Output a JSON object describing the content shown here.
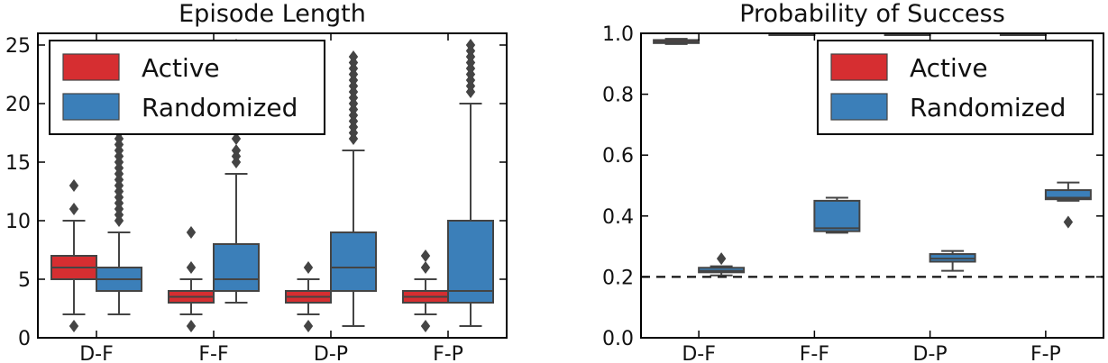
{
  "colors": {
    "active": "#d62e31",
    "randomized": "#3b7fb9",
    "outline": "#444444",
    "frame": "#000000"
  },
  "chart_data": [
    {
      "type": "box",
      "title": "Episode Length",
      "xlabel": "",
      "ylabel": "",
      "ylim": [
        0,
        26
      ],
      "yticks": [
        0,
        5,
        10,
        15,
        20,
        25
      ],
      "ytick_labels": [
        "0",
        "5",
        "10",
        "15",
        "20",
        "25"
      ],
      "categories": [
        "D-F",
        "F-F",
        "D-P",
        "F-P"
      ],
      "legend": {
        "placement": "top-left",
        "entries": [
          "Active",
          "Randomized"
        ]
      },
      "reference_line": null,
      "series": [
        {
          "name": "Active",
          "color": "#d62e31",
          "boxes": [
            {
              "category": "D-F",
              "whisker_low": 2,
              "q1": 5,
              "median": 6,
              "q3": 7,
              "whisker_high": 10,
              "outliers": [
                1,
                11,
                13
              ]
            },
            {
              "category": "F-F",
              "whisker_low": 2,
              "q1": 3,
              "median": 3.5,
              "q3": 4,
              "whisker_high": 5,
              "outliers": [
                1,
                6,
                9
              ]
            },
            {
              "category": "D-P",
              "whisker_low": 2,
              "q1": 3,
              "median": 3.5,
              "q3": 4,
              "whisker_high": 5,
              "outliers": [
                1,
                6
              ]
            },
            {
              "category": "F-P",
              "whisker_low": 2,
              "q1": 3,
              "median": 3.5,
              "q3": 4,
              "whisker_high": 5,
              "outliers": [
                1,
                6,
                7
              ]
            }
          ]
        },
        {
          "name": "Randomized",
          "color": "#3b7fb9",
          "boxes": [
            {
              "category": "D-F",
              "whisker_low": 2,
              "q1": 4,
              "median": 5,
              "q3": 6,
              "whisker_high": 9,
              "outliers": [
                10,
                10.5,
                11,
                11.5,
                12,
                12.5,
                13,
                13.5,
                14,
                14.5,
                15,
                15.5,
                16,
                16.5,
                17,
                17.5,
                18,
                18.5
              ]
            },
            {
              "category": "F-F",
              "whisker_low": 3,
              "q1": 4,
              "median": 5,
              "q3": 8,
              "whisker_high": 14,
              "outliers": [
                15,
                15.5,
                16,
                17,
                18,
                19,
                20,
                21,
                22,
                23,
                24,
                24.5,
                25
              ]
            },
            {
              "category": "D-P",
              "whisker_low": 1,
              "q1": 4,
              "median": 6,
              "q3": 9,
              "whisker_high": 16,
              "outliers": [
                17,
                17.5,
                18,
                18.5,
                19,
                19.5,
                20,
                20.5,
                21,
                21.5,
                22,
                22.5,
                23,
                23.5,
                24
              ]
            },
            {
              "category": "F-P",
              "whisker_low": 1,
              "q1": 3,
              "median": 4,
              "q3": 10,
              "whisker_high": 20,
              "outliers": [
                21,
                21.5,
                22,
                22.5,
                23,
                23.5,
                24,
                24.5,
                25
              ]
            }
          ]
        }
      ]
    },
    {
      "type": "box",
      "title": "Probability of Success",
      "xlabel": "",
      "ylabel": "",
      "ylim": [
        0,
        1.0
      ],
      "yticks": [
        0.0,
        0.2,
        0.4,
        0.6,
        0.8,
        1.0
      ],
      "ytick_labels": [
        "0.0",
        "0.2",
        "0.4",
        "0.6",
        "0.8",
        "1.0"
      ],
      "categories": [
        "D-F",
        "F-F",
        "D-P",
        "F-P"
      ],
      "legend": {
        "placement": "top-right",
        "entries": [
          "Active",
          "Randomized"
        ]
      },
      "reference_line": {
        "y": 0.2,
        "style": "dashed"
      },
      "series": [
        {
          "name": "Active",
          "color": "#d62e31",
          "boxes": [
            {
              "category": "D-F",
              "whisker_low": 0.965,
              "q1": 0.968,
              "median": 0.972,
              "q3": 0.978,
              "whisker_high": 0.982,
              "outliers": []
            },
            {
              "category": "F-F",
              "whisker_low": 0.998,
              "q1": 0.999,
              "median": 1.0,
              "q3": 1.0,
              "whisker_high": 1.0,
              "outliers": []
            },
            {
              "category": "D-P",
              "whisker_low": 0.998,
              "q1": 0.999,
              "median": 1.0,
              "q3": 1.0,
              "whisker_high": 1.0,
              "outliers": []
            },
            {
              "category": "F-P",
              "whisker_low": 0.998,
              "q1": 0.999,
              "median": 1.0,
              "q3": 1.0,
              "whisker_high": 1.0,
              "outliers": []
            }
          ]
        },
        {
          "name": "Randomized",
          "color": "#3b7fb9",
          "boxes": [
            {
              "category": "D-F",
              "whisker_low": 0.205,
              "q1": 0.215,
              "median": 0.22,
              "q3": 0.23,
              "whisker_high": 0.235,
              "outliers": [
                0.26
              ]
            },
            {
              "category": "F-F",
              "whisker_low": 0.345,
              "q1": 0.35,
              "median": 0.36,
              "q3": 0.45,
              "whisker_high": 0.46,
              "outliers": []
            },
            {
              "category": "D-P",
              "whisker_low": 0.22,
              "q1": 0.25,
              "median": 0.26,
              "q3": 0.275,
              "whisker_high": 0.285,
              "outliers": []
            },
            {
              "category": "F-P",
              "whisker_low": 0.45,
              "q1": 0.455,
              "median": 0.46,
              "q3": 0.485,
              "whisker_high": 0.51,
              "outliers": [
                0.38
              ]
            }
          ]
        }
      ]
    }
  ]
}
